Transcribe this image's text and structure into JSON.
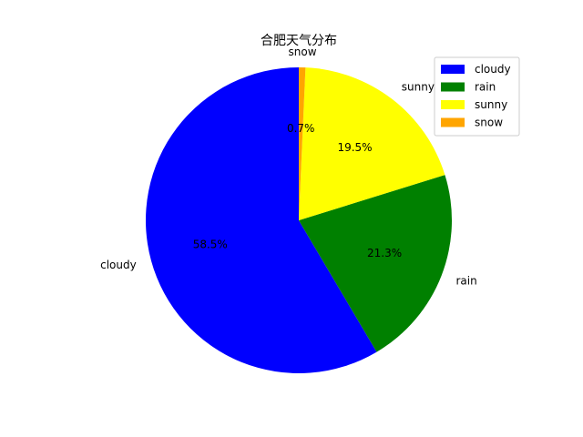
{
  "chart_data": {
    "type": "pie",
    "title": "合肥天气分布",
    "categories": [
      "cloudy",
      "rain",
      "sunny",
      "snow"
    ],
    "values": [
      58.5,
      21.3,
      19.5,
      0.7
    ],
    "percent_labels": [
      "58.5%",
      "21.3%",
      "19.5%",
      "0.7%"
    ],
    "colors": [
      "#0000ff",
      "#008000",
      "#ffff00",
      "#ffa500"
    ],
    "start_angle_deg": 90,
    "direction": "counterclockwise",
    "legend": {
      "placement": "top-right",
      "entries": [
        "cloudy",
        "rain",
        "sunny",
        "snow"
      ]
    }
  }
}
